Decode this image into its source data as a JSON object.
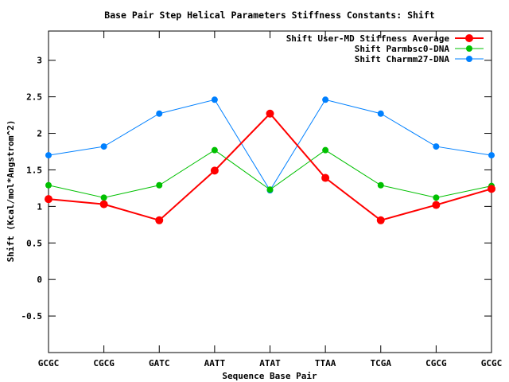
{
  "chart_data": {
    "type": "line",
    "title": "Base Pair Step Helical Parameters Stiffness Constants: Shift",
    "xlabel": "Sequence Base Pair",
    "ylabel": "Shift (Kcal/mol*Angstrom^2)",
    "ylim": [
      -1,
      3.4
    ],
    "yticks": [
      -0.5,
      0,
      0.5,
      1,
      1.5,
      2,
      2.5,
      3
    ],
    "ytick_labels": [
      "-0.5",
      "0",
      "0.5",
      "1",
      "1.5",
      "2",
      "2.5",
      "3"
    ],
    "categories": [
      "GCGC",
      "CGCG",
      "GATC",
      "AATT",
      "ATAT",
      "TTAA",
      "TCGA",
      "CGCG",
      "GCGC"
    ],
    "grid": false,
    "legend_position": "top-right",
    "series": [
      {
        "name": "Shift User-MD Stiffness Average",
        "color": "#ff0000",
        "values": [
          1.1,
          1.03,
          0.81,
          1.49,
          2.27,
          1.39,
          0.81,
          1.02,
          1.24
        ],
        "line_width": 2,
        "marker_size": 5
      },
      {
        "name": "Shift Parmbsc0-DNA",
        "color": "#00c000",
        "values": [
          1.29,
          1.12,
          1.29,
          1.77,
          1.23,
          1.77,
          1.29,
          1.12,
          1.28
        ],
        "line_width": 1,
        "marker_size": 4
      },
      {
        "name": "Shift Charmm27-DNA",
        "color": "#0080ff",
        "values": [
          1.7,
          1.82,
          2.27,
          2.46,
          1.22,
          2.46,
          2.27,
          1.82,
          1.7
        ],
        "line_width": 1,
        "marker_size": 4
      }
    ]
  }
}
